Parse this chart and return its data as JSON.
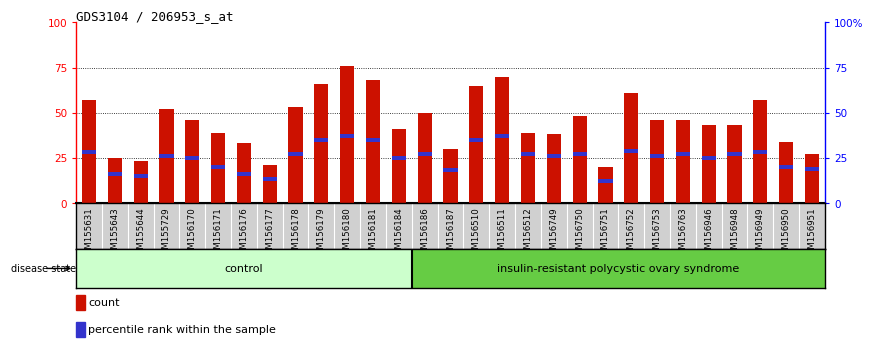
{
  "title": "GDS3104 / 206953_s_at",
  "samples": [
    "GSM155631",
    "GSM155643",
    "GSM155644",
    "GSM155729",
    "GSM156170",
    "GSM156171",
    "GSM156176",
    "GSM156177",
    "GSM156178",
    "GSM156179",
    "GSM156180",
    "GSM156181",
    "GSM156184",
    "GSM156186",
    "GSM156187",
    "GSM156510",
    "GSM156511",
    "GSM156512",
    "GSM156749",
    "GSM156750",
    "GSM156751",
    "GSM156752",
    "GSM156753",
    "GSM156763",
    "GSM156946",
    "GSM156948",
    "GSM156949",
    "GSM156950",
    "GSM156951"
  ],
  "bar_heights": [
    57,
    25,
    23,
    52,
    46,
    39,
    33,
    21,
    53,
    66,
    76,
    68,
    41,
    50,
    30,
    65,
    70,
    39,
    38,
    48,
    20,
    61,
    46,
    46,
    43,
    43,
    57,
    34,
    27
  ],
  "blue_positions": [
    28,
    16,
    15,
    26,
    25,
    20,
    16,
    13,
    27,
    35,
    37,
    35,
    25,
    27,
    18,
    35,
    37,
    27,
    26,
    27,
    12,
    29,
    26,
    27,
    25,
    27,
    28,
    20,
    19
  ],
  "control_count": 13,
  "control_label": "control",
  "disease_label": "insulin-resistant polycystic ovary syndrome",
  "disease_state_label": "disease state",
  "bar_color": "#cc1100",
  "blue_color": "#3333cc",
  "control_bg": "#ccffcc",
  "disease_bg": "#66cc44",
  "yticks_left": [
    0,
    25,
    50,
    75,
    100
  ],
  "yticks_right_labels": [
    "0",
    "25",
    "50",
    "75",
    "100%"
  ],
  "grid_values": [
    25,
    50,
    75
  ],
  "ylim": [
    0,
    100
  ],
  "legend_count": "count",
  "legend_percentile": "percentile rank within the sample",
  "title_fontsize": 9,
  "tick_label_bg": "#d0d0d0",
  "bar_width": 0.55
}
